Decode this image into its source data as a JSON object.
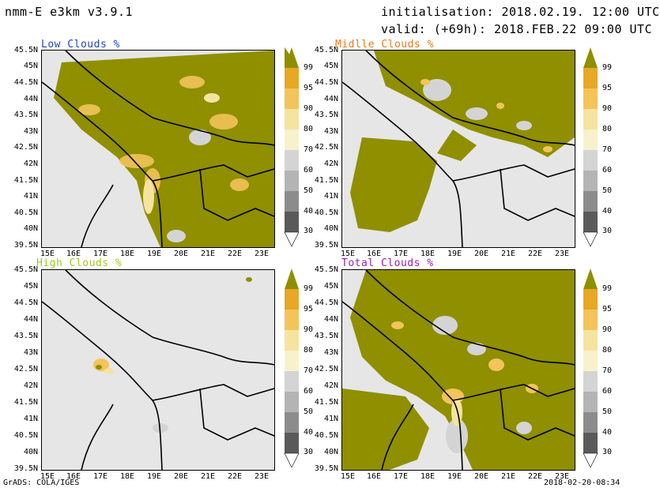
{
  "header": {
    "model": "nmm-E e3km v3.9.1",
    "init": "initialisation: 2018.02.19. 12:00 UTC",
    "valid": "valid: (+69h): 2018.FEB.22 09:00 UTC"
  },
  "footer": {
    "left": "GrADS: COLA/IGES",
    "right": "2018-02-20-08:34"
  },
  "lat_labels": [
    "45.5N",
    "45N",
    "44.5N",
    "44N",
    "43.5N",
    "43N",
    "42.5N",
    "42N",
    "41.5N",
    "41N",
    "40.5N",
    "40N",
    "39.5N"
  ],
  "lon_labels": [
    "15E",
    "16E",
    "17E",
    "18E",
    "19E",
    "20E",
    "21E",
    "22E",
    "23E"
  ],
  "colorbar_labels": [
    "99",
    "95",
    "90",
    "80",
    "70",
    "60",
    "50",
    "40",
    "30"
  ],
  "colors": {
    "cloud_dense": "#8f8f00",
    "cloud_95": "#e6a826",
    "cloud_90": "#f2c45a",
    "cloud_80": "#f5e3a0",
    "cloud_70": "#f7f2cc",
    "cloud_60": "#d4d4d4",
    "cloud_50": "#b4b4b4",
    "cloud_40": "#8c8c8c",
    "cloud_30": "#5a5a5a",
    "clear": "#e6e6e6",
    "low_title": "#1f44c4",
    "middle_title": "#ee7a1a",
    "high_title": "#9ccc1c",
    "total_title": "#9c1fb4"
  },
  "panels": [
    {
      "id": "low",
      "title": "Low Clouds %"
    },
    {
      "id": "middle",
      "title": "Midlle Clouds %"
    },
    {
      "id": "high",
      "title": "High Clouds %"
    },
    {
      "id": "total",
      "title": "Total Clouds %"
    }
  ]
}
